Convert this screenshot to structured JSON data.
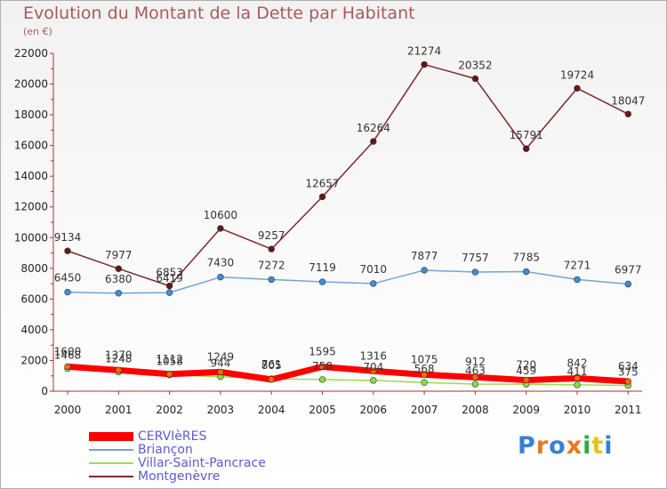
{
  "chart_data": {
    "type": "line",
    "title": "Evolution du Montant de la Dette par Habitant",
    "subtitle": "(en €)",
    "categories": [
      "2000",
      "2001",
      "2002",
      "2003",
      "2004",
      "2005",
      "2006",
      "2007",
      "2008",
      "2009",
      "2010",
      "2011"
    ],
    "ylim": [
      0,
      22000
    ],
    "yticks": [
      0,
      2000,
      4000,
      6000,
      8000,
      10000,
      12000,
      14000,
      16000,
      18000,
      20000,
      22000
    ],
    "grid": false,
    "legend_position": "bottom-left",
    "series": [
      {
        "name": "CERVIèRES",
        "color": "#ff0000",
        "marker": "#ff6a00",
        "values": [
          1600,
          1370,
          1112,
          1249,
          761,
          1595,
          1316,
          1075,
          912,
          720,
          842,
          634
        ],
        "labels": [
          "1600",
          "1370",
          "1112",
          "1249",
          "761",
          "1595",
          "1316",
          "1075",
          "912",
          "720",
          "842",
          "634"
        ]
      },
      {
        "name": "Briançon",
        "color": "#6fa6d8",
        "marker": "#3d8fd6",
        "values": [
          6450,
          6380,
          6419,
          7430,
          7272,
          7119,
          7010,
          7877,
          7757,
          7785,
          7271,
          6977
        ],
        "labels": [
          "6450",
          "6380",
          "6419",
          "7430",
          "7272",
          "7119",
          "7010",
          "7877",
          "7757",
          "7785",
          "7271",
          "6977"
        ]
      },
      {
        "name": "Villar-Saint-Pancrace",
        "color": "#99dd55",
        "marker": "#88dd44",
        "values": [
          1468,
          1248,
          1058,
          944,
          805,
          758,
          704,
          568,
          463,
          459,
          411,
          375
        ],
        "labels": [
          "1468",
          "1248",
          "1058",
          "944",
          "805",
          "758",
          "704",
          "568",
          "463",
          "459",
          "411",
          "375"
        ]
      },
      {
        "name": "Montgenèvre",
        "color": "#7a2a2a",
        "marker": "#6a1515",
        "values": [
          9134,
          7977,
          6853,
          10600,
          9257,
          12657,
          16264,
          21274,
          20352,
          15791,
          19724,
          18047
        ],
        "labels": [
          "9134",
          "7977",
          "6853",
          "10600",
          "9257",
          "12657",
          "16264",
          "21274",
          "20352",
          "15791",
          "19724",
          "18047"
        ]
      }
    ]
  },
  "brand": {
    "text": "Proxiti",
    "colors": [
      "#3a7fd0",
      "#e87a1c",
      "#3a7fd0",
      "#e87a1c",
      "#2fa84a",
      "#e8c21c",
      "#3a7fd0"
    ]
  }
}
